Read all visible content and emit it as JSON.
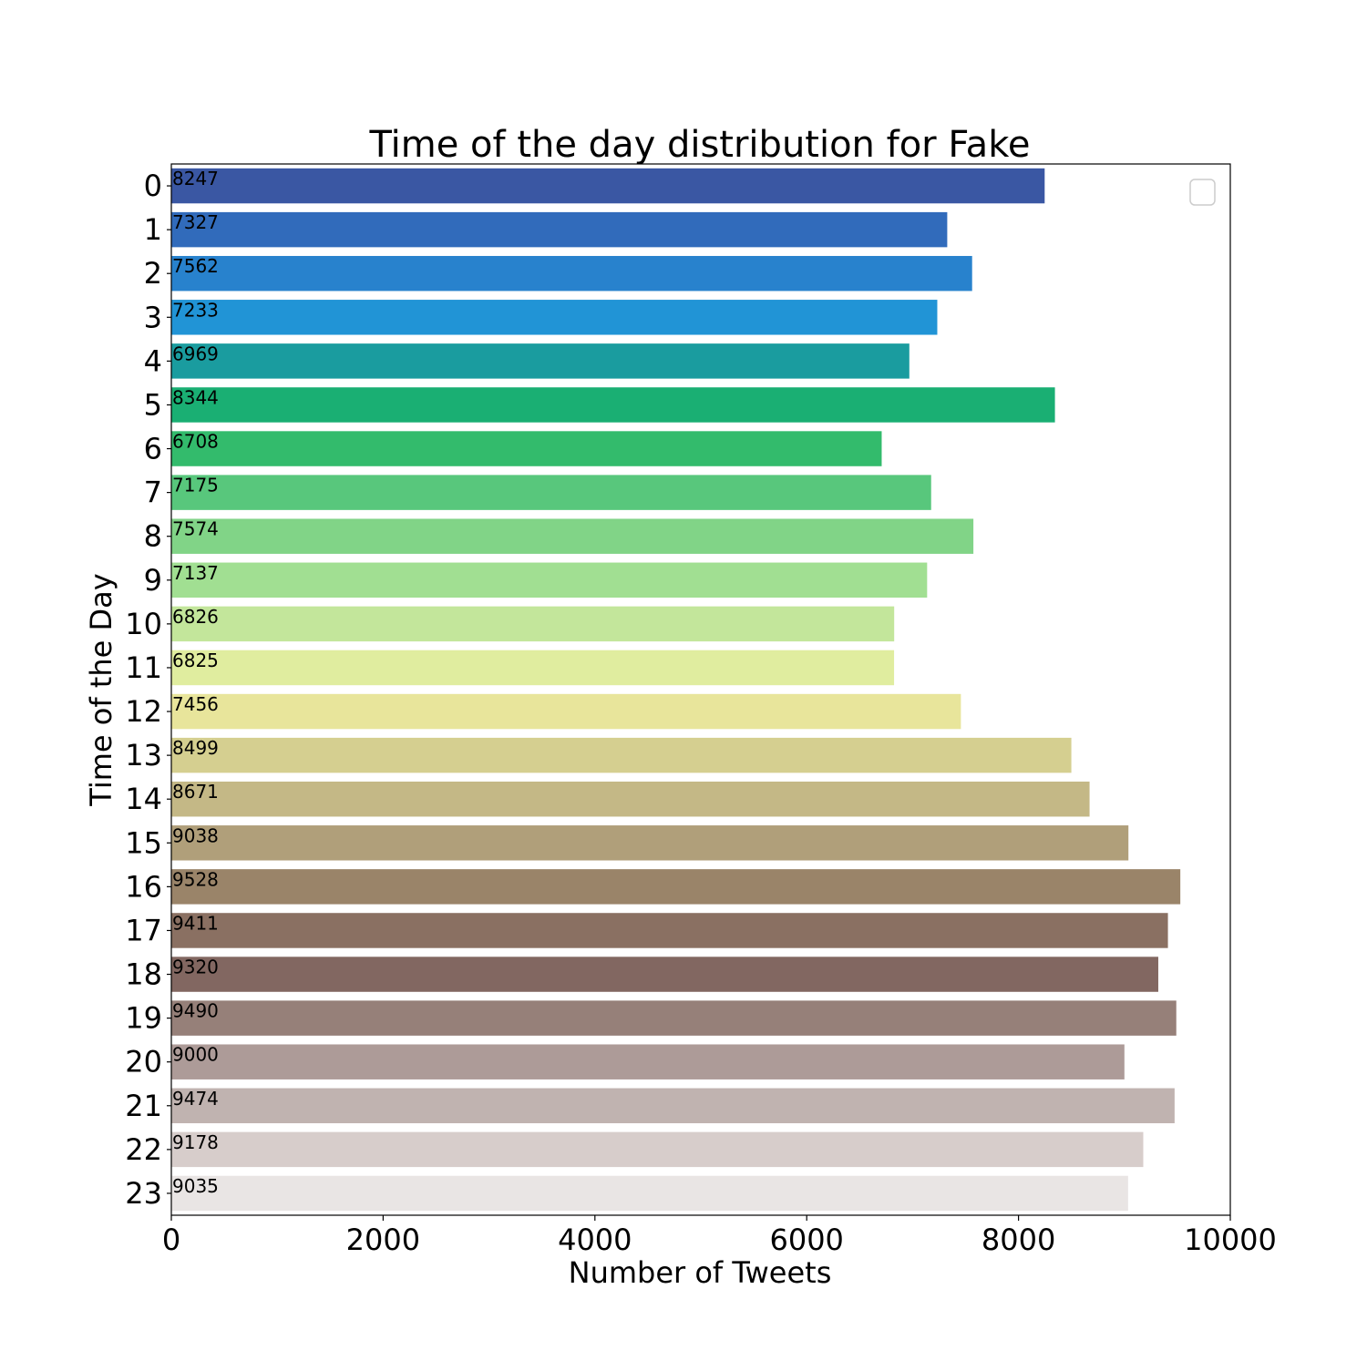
{
  "chart_data": {
    "type": "bar",
    "orientation": "horizontal",
    "title": "Time of the day distribution for Fake",
    "xlabel": "Number of Tweets",
    "ylabel": "Time of the Day",
    "xlim": [
      0,
      10000
    ],
    "xticks": [
      "0",
      "2000",
      "4000",
      "6000",
      "8000",
      "10000"
    ],
    "categories": [
      "0",
      "1",
      "2",
      "3",
      "4",
      "5",
      "6",
      "7",
      "8",
      "9",
      "10",
      "11",
      "12",
      "13",
      "14",
      "15",
      "16",
      "17",
      "18",
      "19",
      "20",
      "21",
      "22",
      "23"
    ],
    "values": [
      8247,
      7327,
      7562,
      7233,
      6969,
      8344,
      6708,
      7175,
      7574,
      7137,
      6826,
      6825,
      7456,
      8499,
      8671,
      9038,
      9528,
      9411,
      9320,
      9490,
      9000,
      9474,
      9178,
      9035
    ],
    "value_labels": [
      "8247",
      "7327",
      "7562",
      "7233",
      "6969",
      "8344",
      "6708",
      "7175",
      "7574",
      "7137",
      "6826",
      "6825",
      "7456",
      "8499",
      "8671",
      "9038",
      "9528",
      "9411",
      "9320",
      "9490",
      "9000",
      "9474",
      "9178",
      "9035"
    ],
    "colors": [
      "#3a57a3",
      "#316bbb",
      "#2882cd",
      "#2194d6",
      "#1a9c9f",
      "#1aaf73",
      "#33bb6c",
      "#58c77c",
      "#81d487",
      "#a1df92",
      "#c3e69b",
      "#e0ed9f",
      "#e8e59b",
      "#d5cf90",
      "#c4b886",
      "#b09f7a",
      "#9a8469",
      "#8a7062",
      "#826761",
      "#968079",
      "#ad9b98",
      "#c0b3b0",
      "#d7cdcb",
      "#e9e5e4"
    ],
    "legend": {
      "position": "top-right",
      "entries": []
    },
    "grid": false
  }
}
